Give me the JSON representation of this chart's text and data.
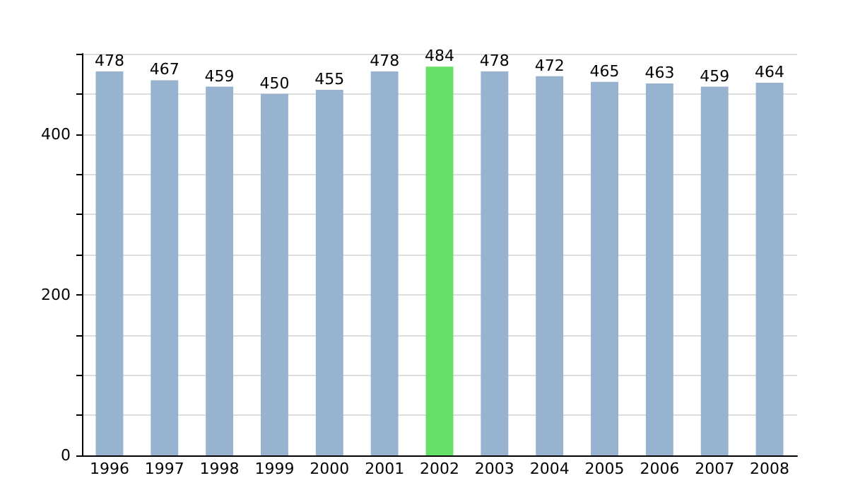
{
  "chart_data": {
    "type": "bar",
    "categories": [
      "1996",
      "1997",
      "1998",
      "1999",
      "2000",
      "2001",
      "2002",
      "2003",
      "2004",
      "2005",
      "2006",
      "2007",
      "2008"
    ],
    "values": [
      478,
      467,
      459,
      450,
      455,
      478,
      484,
      478,
      472,
      465,
      463,
      459,
      464
    ],
    "colors": [
      "#98b3cf",
      "#98b3cf",
      "#98b3cf",
      "#98b3cf",
      "#98b3cf",
      "#98b3cf",
      "#66e066",
      "#98b3cf",
      "#98b3cf",
      "#98b3cf",
      "#98b3cf",
      "#98b3cf",
      "#98b3cf"
    ],
    "ylim": [
      0,
      500
    ],
    "yticks": [
      0,
      {
        "value": 50,
        "label": null
      },
      {
        "value": 100,
        "label": null
      },
      {
        "value": 150,
        "label": null
      },
      200,
      {
        "value": 250,
        "label": null
      },
      {
        "value": 300,
        "label": null
      },
      {
        "value": 350,
        "label": null
      },
      400,
      {
        "value": 450,
        "label": null
      },
      {
        "value": 500,
        "label": null
      }
    ],
    "grid": "y",
    "data_labels": true
  }
}
